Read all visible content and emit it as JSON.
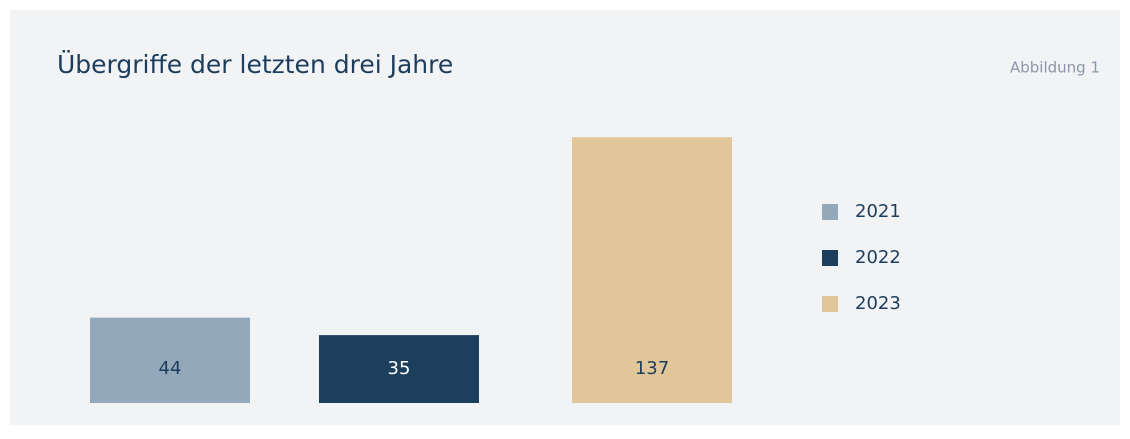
{
  "chart_data": {
    "type": "bar",
    "title": "Übergriffe der letzten drei Jahre",
    "annotation": "Abbildung 1",
    "categories": [
      "2021",
      "2022",
      "2023"
    ],
    "values": [
      44,
      35,
      137
    ],
    "colors": [
      "#94a8bc",
      "#1d3f5e",
      "#e1c699"
    ],
    "legend": "right"
  }
}
